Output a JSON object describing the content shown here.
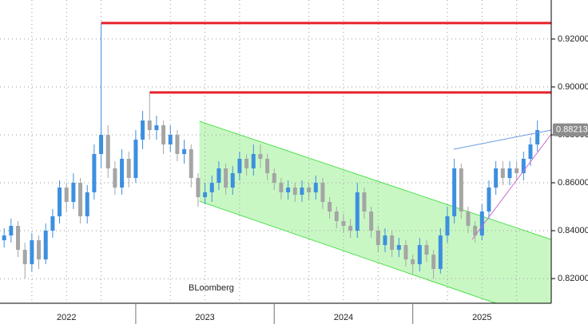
{
  "chart_data": {
    "type": "candlestick",
    "xlim": [
      2022.02,
      2026.0
    ],
    "ylim": [
      0.8097,
      0.9363
    ],
    "xticks": [
      {
        "value": 2022.5,
        "label": "2022"
      },
      {
        "value": 2023.5,
        "label": "2023"
      },
      {
        "value": 2024.5,
        "label": "2024"
      },
      {
        "value": 2025.5,
        "label": "2025"
      }
    ],
    "yticks": [
      {
        "value": 0.82,
        "label": "0.82000"
      },
      {
        "value": 0.84,
        "label": "0.84000"
      },
      {
        "value": 0.86,
        "label": "0.86000"
      },
      {
        "value": 0.88,
        "label": "0.88000"
      },
      {
        "value": 0.9,
        "label": "0.90000"
      },
      {
        "value": 0.92,
        "label": "0.92000"
      }
    ],
    "grid": true,
    "up_color": "#3d8fe0",
    "down_color": "#a5a5a5",
    "x": [
      2022.05,
      2022.1,
      2022.15,
      2022.2,
      2022.25,
      2022.3,
      2022.35,
      2022.4,
      2022.45,
      2022.5,
      2022.55,
      2022.6,
      2022.65,
      2022.7,
      2022.75,
      2022.8,
      2022.85,
      2022.9,
      2022.95,
      2023.0,
      2023.05,
      2023.1,
      2023.15,
      2023.2,
      2023.25,
      2023.3,
      2023.35,
      2023.4,
      2023.45,
      2023.5,
      2023.55,
      2023.6,
      2023.65,
      2023.7,
      2023.75,
      2023.8,
      2023.85,
      2023.9,
      2023.95,
      2024.0,
      2024.05,
      2024.1,
      2024.15,
      2024.2,
      2024.25,
      2024.3,
      2024.35,
      2024.4,
      2024.45,
      2024.5,
      2024.55,
      2024.6,
      2024.65,
      2024.7,
      2024.75,
      2024.8,
      2024.85,
      2024.9,
      2024.95,
      2025.0,
      2025.05,
      2025.1,
      2025.15,
      2025.2,
      2025.25,
      2025.3,
      2025.35,
      2025.4,
      2025.45,
      2025.5,
      2025.55,
      2025.6,
      2025.65,
      2025.7,
      2025.75,
      2025.8,
      2025.85,
      2025.9
    ],
    "open": [
      0.836,
      0.838,
      0.842,
      0.832,
      0.826,
      0.836,
      0.828,
      0.84,
      0.846,
      0.858,
      0.852,
      0.86,
      0.846,
      0.856,
      0.872,
      0.88,
      0.866,
      0.858,
      0.87,
      0.862,
      0.878,
      0.886,
      0.882,
      0.884,
      0.876,
      0.88,
      0.872,
      0.874,
      0.862,
      0.854,
      0.856,
      0.86,
      0.866,
      0.858,
      0.864,
      0.87,
      0.866,
      0.872,
      0.87,
      0.864,
      0.86,
      0.856,
      0.858,
      0.855,
      0.858,
      0.856,
      0.86,
      0.852,
      0.848,
      0.844,
      0.842,
      0.84,
      0.856,
      0.848,
      0.84,
      0.834,
      0.838,
      0.832,
      0.834,
      0.828,
      0.826,
      0.834,
      0.83,
      0.824,
      0.838,
      0.846,
      0.866,
      0.848,
      0.842,
      0.838,
      0.848,
      0.858,
      0.866,
      0.862,
      0.866,
      0.864,
      0.87,
      0.876
    ],
    "high": [
      0.841,
      0.845,
      0.844,
      0.835,
      0.839,
      0.838,
      0.843,
      0.849,
      0.861,
      0.86,
      0.864,
      0.862,
      0.859,
      0.876,
      0.9267,
      0.884,
      0.869,
      0.874,
      0.873,
      0.882,
      0.89,
      0.8977,
      0.888,
      0.886,
      0.884,
      0.882,
      0.878,
      0.876,
      0.864,
      0.86,
      0.863,
      0.869,
      0.868,
      0.867,
      0.873,
      0.872,
      0.876,
      0.876,
      0.872,
      0.866,
      0.862,
      0.861,
      0.86,
      0.861,
      0.86,
      0.863,
      0.862,
      0.854,
      0.85,
      0.847,
      0.845,
      0.86,
      0.858,
      0.85,
      0.842,
      0.841,
      0.84,
      0.837,
      0.836,
      0.83,
      0.837,
      0.836,
      0.832,
      0.841,
      0.85,
      0.87,
      0.868,
      0.85,
      0.844,
      0.851,
      0.861,
      0.869,
      0.869,
      0.869,
      0.869,
      0.873,
      0.879,
      0.886
    ],
    "low": [
      0.833,
      0.835,
      0.829,
      0.82,
      0.823,
      0.824,
      0.826,
      0.837,
      0.843,
      0.848,
      0.849,
      0.843,
      0.843,
      0.853,
      0.866,
      0.862,
      0.855,
      0.855,
      0.858,
      0.86,
      0.874,
      0.878,
      0.878,
      0.872,
      0.873,
      0.869,
      0.868,
      0.858,
      0.85,
      0.851,
      0.852,
      0.857,
      0.855,
      0.855,
      0.861,
      0.863,
      0.863,
      0.866,
      0.861,
      0.857,
      0.853,
      0.853,
      0.852,
      0.852,
      0.853,
      0.853,
      0.849,
      0.845,
      0.841,
      0.839,
      0.837,
      0.837,
      0.845,
      0.837,
      0.831,
      0.831,
      0.829,
      0.829,
      0.825,
      0.822,
      0.823,
      0.827,
      0.82,
      0.822,
      0.835,
      0.843,
      0.845,
      0.839,
      0.835,
      0.836,
      0.845,
      0.855,
      0.859,
      0.859,
      0.861,
      0.861,
      0.867,
      0.873
    ],
    "close": [
      0.838,
      0.842,
      0.832,
      0.826,
      0.836,
      0.828,
      0.84,
      0.846,
      0.858,
      0.852,
      0.86,
      0.846,
      0.856,
      0.872,
      0.88,
      0.866,
      0.858,
      0.87,
      0.862,
      0.878,
      0.886,
      0.882,
      0.884,
      0.876,
      0.88,
      0.872,
      0.874,
      0.862,
      0.854,
      0.856,
      0.86,
      0.866,
      0.858,
      0.864,
      0.87,
      0.866,
      0.872,
      0.87,
      0.864,
      0.86,
      0.856,
      0.858,
      0.855,
      0.858,
      0.856,
      0.86,
      0.852,
      0.848,
      0.844,
      0.842,
      0.84,
      0.856,
      0.848,
      0.84,
      0.834,
      0.838,
      0.832,
      0.834,
      0.828,
      0.826,
      0.834,
      0.83,
      0.824,
      0.838,
      0.846,
      0.866,
      0.848,
      0.842,
      0.838,
      0.848,
      0.858,
      0.866,
      0.862,
      0.866,
      0.864,
      0.87,
      0.876,
      0.882
    ],
    "resistance": [
      {
        "x": 2022.75,
        "value": 0.9267,
        "color": "#e8212b"
      },
      {
        "x": 2023.1,
        "value": 0.8977,
        "color": "#e8212b"
      }
    ],
    "channel": {
      "color": "#4fe04f",
      "fill": "#c9f7c4",
      "upper": [
        [
          2023.46,
          0.8857
        ],
        [
          2026.0,
          0.8363
        ]
      ],
      "lower": [
        [
          2023.46,
          0.8523
        ],
        [
          2025.6,
          0.8097
        ]
      ]
    },
    "trendlines": [
      {
        "color": "#6d9be0",
        "points": [
          [
            2025.295,
            0.874
          ],
          [
            2026.0,
            0.882
          ]
        ]
      },
      {
        "color": "#c86dd0",
        "points": [
          [
            2025.428,
            0.8363
          ],
          [
            2026.0,
            0.8803
          ]
        ]
      }
    ],
    "last_price": {
      "value": 0.88213,
      "label": "0.88213"
    },
    "source": "BLoomberg"
  }
}
